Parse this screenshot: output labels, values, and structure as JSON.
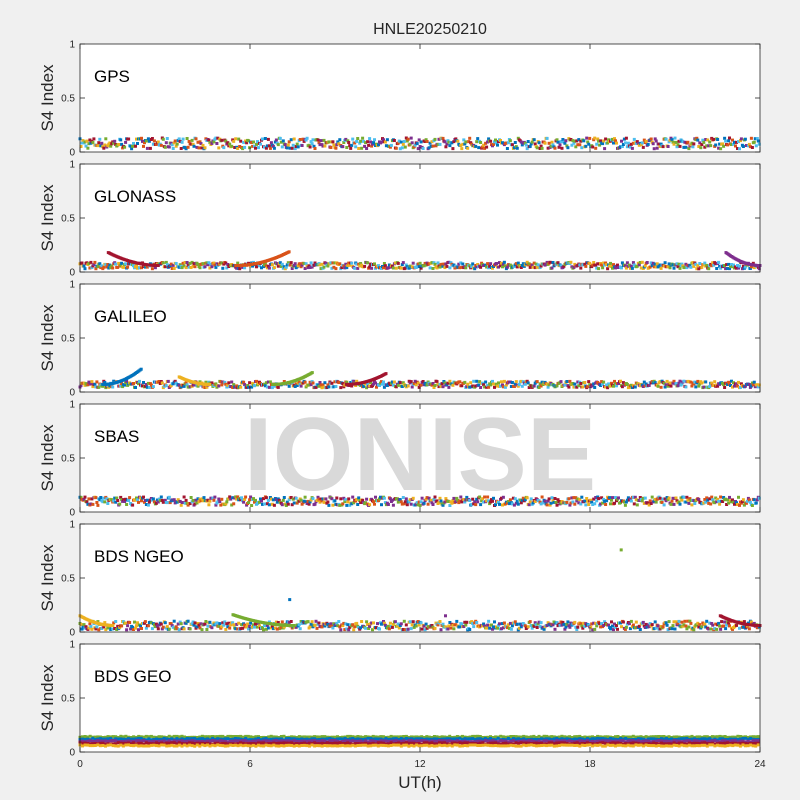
{
  "title": "HNLE20250210",
  "watermark": "IONISE",
  "colors": [
    "#0072BD",
    "#D95319",
    "#EDB120",
    "#7E2F8E",
    "#77AC30",
    "#4DBEEE",
    "#A2142F"
  ],
  "chart_data": {
    "type": "scatter",
    "title": "HNLE20250210",
    "xlabel": "UT(h)",
    "ylabel": "S4 Index",
    "xlim": [
      0,
      24
    ],
    "ylim": [
      0,
      1
    ],
    "xticks": [
      0,
      6,
      12,
      18,
      24
    ],
    "yticks": [
      0,
      0.5,
      1
    ],
    "xtick_labels": [
      "0",
      "6",
      "12",
      "18",
      "24"
    ],
    "ytick_labels": [
      "0",
      "0.5",
      "1"
    ],
    "grid": false,
    "panels": [
      {
        "name": "GPS",
        "baseline": 0.08,
        "spread": 0.05,
        "arcs": [],
        "outliers": []
      },
      {
        "name": "GLONASS",
        "baseline": 0.06,
        "spread": 0.03,
        "arcs": [
          {
            "x": [
              1.0,
              2.8
            ],
            "peak": 0.18,
            "side": "left"
          },
          {
            "x": [
              5.5,
              7.4
            ],
            "peak": 0.19,
            "side": "right"
          },
          {
            "x": [
              22.8,
              24.0
            ],
            "peak": 0.18,
            "side": "left"
          }
        ],
        "outliers": []
      },
      {
        "name": "GALILEO",
        "baseline": 0.07,
        "spread": 0.03,
        "arcs": [
          {
            "x": [
              0.8,
              2.2
            ],
            "peak": 0.22,
            "side": "right"
          },
          {
            "x": [
              3.5,
              4.6
            ],
            "peak": 0.14,
            "side": "left"
          },
          {
            "x": [
              6.8,
              8.2
            ],
            "peak": 0.18,
            "side": "right"
          },
          {
            "x": [
              9.4,
              10.8
            ],
            "peak": 0.17,
            "side": "right"
          }
        ],
        "outliers": []
      },
      {
        "name": "SBAS",
        "baseline": 0.1,
        "spread": 0.04,
        "arcs": [],
        "outliers": []
      },
      {
        "name": "BDS NGEO",
        "baseline": 0.06,
        "spread": 0.04,
        "arcs": [
          {
            "x": [
              0.0,
              1.2
            ],
            "peak": 0.15,
            "side": "left"
          },
          {
            "x": [
              5.4,
              7.6
            ],
            "peak": 0.16,
            "side": "left"
          },
          {
            "x": [
              22.6,
              24.0
            ],
            "peak": 0.15,
            "side": "left"
          }
        ],
        "outliers": [
          {
            "x": 19.1,
            "y": 0.76
          },
          {
            "x": 7.4,
            "y": 0.3
          },
          {
            "x": 12.9,
            "y": 0.15
          }
        ]
      },
      {
        "name": "BDS GEO",
        "baseline": 0.1,
        "spread": 0.0,
        "bands": [
          0.14,
          0.12,
          0.1,
          0.08,
          0.06
        ],
        "arcs": [],
        "outliers": []
      }
    ]
  }
}
